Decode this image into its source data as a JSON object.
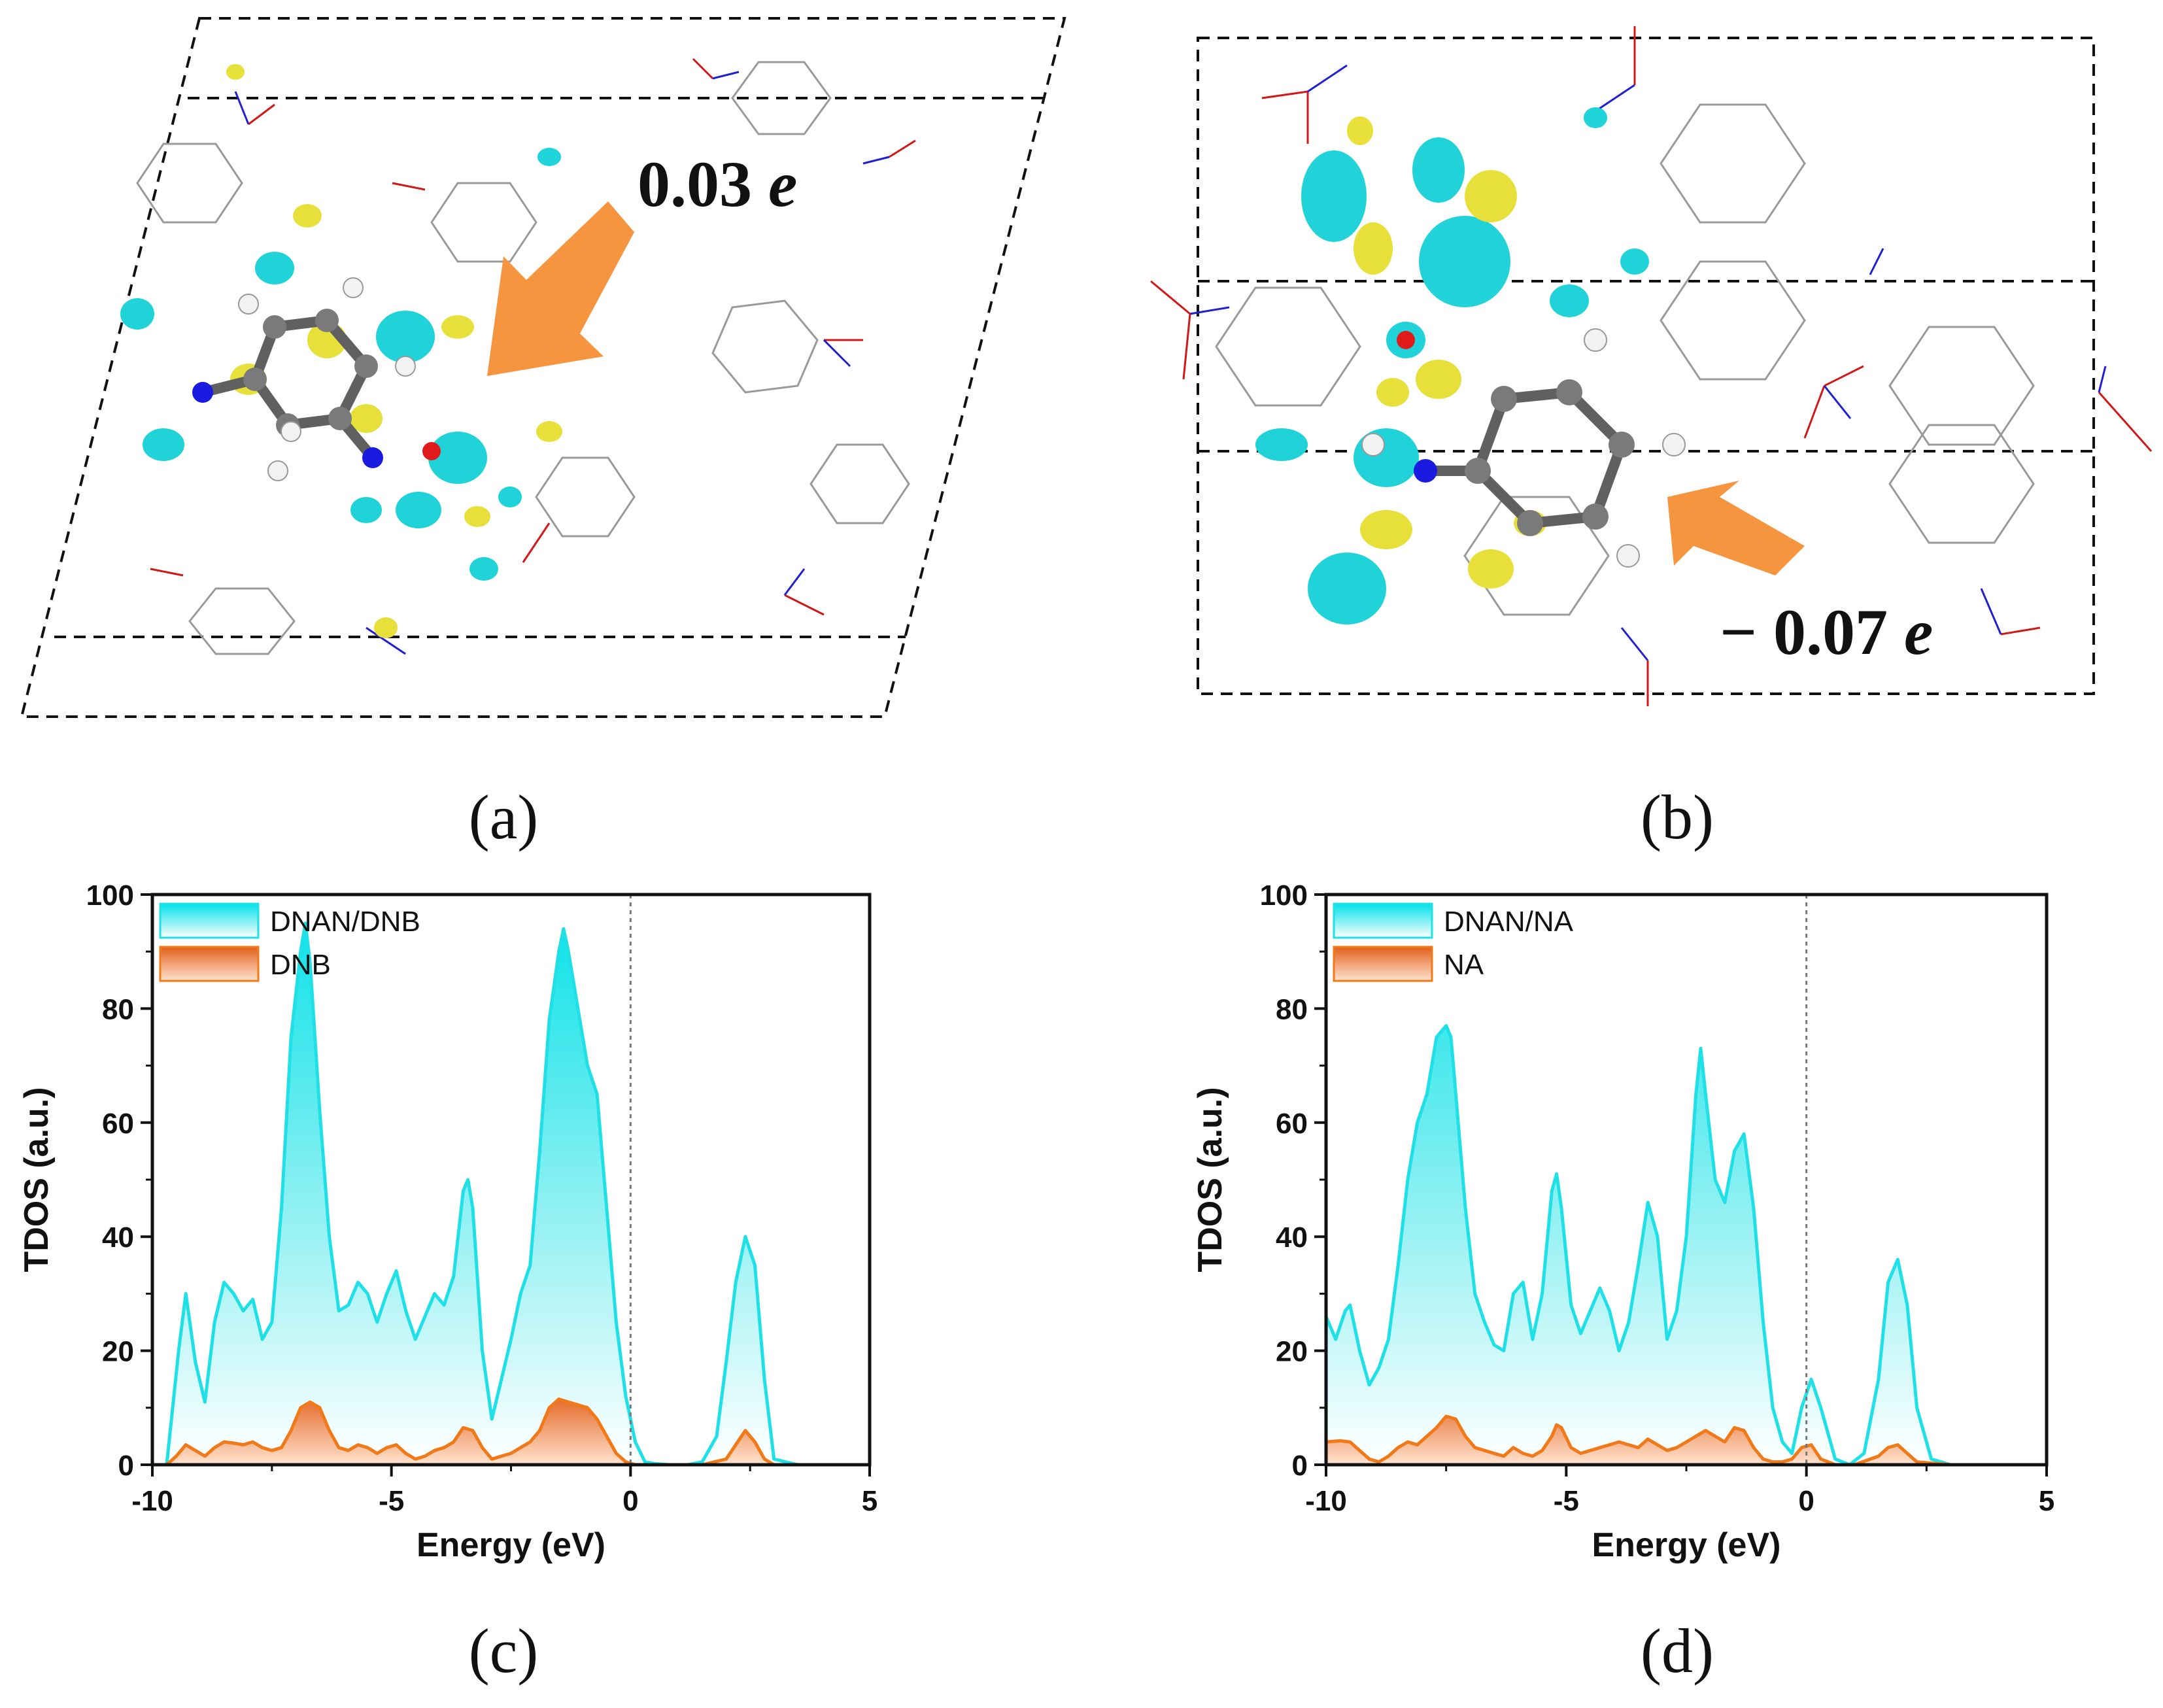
{
  "panels": {
    "a": {
      "label": "(a)",
      "charge": "0.03",
      "unit": "e"
    },
    "b": {
      "label": "(b)",
      "charge": "− 0.07",
      "unit": "e"
    },
    "c": {
      "label": "(c)"
    },
    "d": {
      "label": "(d)"
    }
  },
  "colors": {
    "cyan": "#1fe0e6",
    "orange": "#f07a1a",
    "arrow": "#f5953f",
    "yellow": "#e8e03a",
    "frame": "#111111"
  },
  "chart_data": [
    {
      "type": "area",
      "title": "",
      "xlabel": "Energy (eV)",
      "ylabel": "TDOS (a.u.)",
      "xlim": [
        -10,
        5
      ],
      "ylim": [
        0,
        100
      ],
      "xticks": [
        -10,
        -5,
        0,
        5
      ],
      "yticks": [
        0,
        20,
        40,
        60,
        80,
        100
      ],
      "fermi_level": 0,
      "legend_position": "top-left",
      "series": [
        {
          "name": "DNAN/DNB",
          "color": "#1fe0e6",
          "x": [
            -10,
            -9.7,
            -9.45,
            -9.3,
            -9.1,
            -8.9,
            -8.7,
            -8.5,
            -8.3,
            -8.1,
            -7.9,
            -7.7,
            -7.5,
            -7.3,
            -7.1,
            -6.9,
            -6.8,
            -6.7,
            -6.5,
            -6.3,
            -6.1,
            -5.9,
            -5.7,
            -5.5,
            -5.3,
            -5.1,
            -4.9,
            -4.7,
            -4.5,
            -4.3,
            -4.1,
            -3.9,
            -3.7,
            -3.5,
            -3.4,
            -3.3,
            -3.1,
            -2.9,
            -2.7,
            -2.5,
            -2.3,
            -2.1,
            -1.9,
            -1.7,
            -1.5,
            -1.4,
            -1.3,
            -1.1,
            -0.9,
            -0.7,
            -0.5,
            -0.3,
            -0.1,
            0.1,
            0.3,
            0.5,
            0.8,
            1.2,
            1.5,
            1.8,
            2.0,
            2.2,
            2.4,
            2.6,
            2.8,
            3.0,
            3.5,
            4.0,
            5.0
          ],
          "y": [
            0,
            0,
            20,
            30,
            18,
            11,
            25,
            32,
            30,
            27,
            29,
            22,
            25,
            45,
            75,
            90,
            95,
            88,
            62,
            40,
            27,
            28,
            32,
            30,
            25,
            30,
            34,
            27,
            22,
            26,
            30,
            28,
            33,
            48,
            50,
            45,
            20,
            8,
            15,
            22,
            30,
            35,
            55,
            78,
            90,
            94,
            90,
            80,
            70,
            65,
            45,
            25,
            12,
            4,
            0.5,
            0.2,
            0,
            0,
            0.5,
            5,
            18,
            32,
            40,
            35,
            15,
            1,
            0,
            0,
            0
          ]
        },
        {
          "name": "DNB",
          "color": "#f07a1a",
          "x": [
            -10,
            -9.7,
            -9.5,
            -9.3,
            -9.1,
            -8.9,
            -8.7,
            -8.5,
            -8.3,
            -8.1,
            -7.9,
            -7.7,
            -7.5,
            -7.3,
            -7.1,
            -6.9,
            -6.7,
            -6.5,
            -6.3,
            -6.1,
            -5.9,
            -5.7,
            -5.5,
            -5.3,
            -5.1,
            -4.9,
            -4.7,
            -4.5,
            -4.3,
            -4.1,
            -3.9,
            -3.7,
            -3.5,
            -3.3,
            -3.1,
            -2.9,
            -2.7,
            -2.5,
            -2.3,
            -2.1,
            -1.9,
            -1.7,
            -1.5,
            -1.3,
            -1.1,
            -0.9,
            -0.7,
            -0.5,
            -0.3,
            -0.1,
            0.1,
            0.5,
            1.0,
            1.5,
            2.0,
            2.2,
            2.4,
            2.6,
            2.8,
            3.0,
            4.0,
            5.0
          ],
          "y": [
            0,
            0,
            1.5,
            3.5,
            2.5,
            1.5,
            3,
            4,
            3.8,
            3.5,
            4,
            3,
            2.5,
            3,
            6,
            10,
            11,
            10,
            6,
            3,
            2.5,
            3.5,
            3,
            2,
            3,
            3.5,
            2,
            1,
            1.5,
            2.5,
            3,
            4,
            6.5,
            6,
            3,
            1,
            1.5,
            2,
            3,
            4,
            6,
            10,
            11.5,
            11,
            10.5,
            10,
            8,
            5,
            2,
            0.5,
            0,
            0,
            0,
            0,
            1,
            3.5,
            6,
            4,
            1,
            0,
            0,
            0
          ]
        }
      ]
    },
    {
      "type": "area",
      "title": "",
      "xlabel": "Energy (eV)",
      "ylabel": "TDOS (a.u.)",
      "xlim": [
        -10,
        5
      ],
      "ylim": [
        0,
        100
      ],
      "xticks": [
        -10,
        -5,
        0,
        5
      ],
      "yticks": [
        0,
        20,
        40,
        60,
        80,
        100
      ],
      "fermi_level": 0,
      "legend_position": "top-left",
      "series": [
        {
          "name": "DNAN/NA",
          "color": "#1fe0e6",
          "x": [
            -10,
            -9.8,
            -9.6,
            -9.5,
            -9.3,
            -9.1,
            -8.9,
            -8.7,
            -8.5,
            -8.3,
            -8.1,
            -7.9,
            -7.7,
            -7.5,
            -7.4,
            -7.3,
            -7.1,
            -6.9,
            -6.7,
            -6.5,
            -6.3,
            -6.1,
            -5.9,
            -5.7,
            -5.5,
            -5.3,
            -5.2,
            -5.1,
            -4.9,
            -4.7,
            -4.5,
            -4.3,
            -4.1,
            -3.9,
            -3.7,
            -3.5,
            -3.3,
            -3.1,
            -2.9,
            -2.7,
            -2.5,
            -2.3,
            -2.2,
            -2.1,
            -1.9,
            -1.7,
            -1.5,
            -1.3,
            -1.1,
            -0.9,
            -0.7,
            -0.5,
            -0.3,
            -0.1,
            0.1,
            0.3,
            0.6,
            0.9,
            1.2,
            1.5,
            1.7,
            1.9,
            2.1,
            2.3,
            2.6,
            3.0,
            4.0,
            5.0
          ],
          "y": [
            26,
            22,
            27,
            28,
            20,
            14,
            17,
            22,
            35,
            50,
            60,
            65,
            75,
            77,
            75,
            65,
            45,
            30,
            25,
            21,
            20,
            30,
            32,
            22,
            30,
            48,
            51,
            45,
            28,
            23,
            27,
            31,
            27,
            20,
            25,
            35,
            46,
            40,
            22,
            27,
            40,
            65,
            73,
            65,
            50,
            46,
            55,
            58,
            45,
            25,
            10,
            4,
            2,
            10,
            15,
            10,
            1,
            0,
            2,
            15,
            32,
            36,
            28,
            10,
            1,
            0,
            0,
            0
          ]
        },
        {
          "name": "NA",
          "color": "#f07a1a",
          "x": [
            -10,
            -9.7,
            -9.5,
            -9.3,
            -9.1,
            -8.9,
            -8.7,
            -8.5,
            -8.3,
            -8.1,
            -7.9,
            -7.7,
            -7.5,
            -7.3,
            -7.1,
            -6.9,
            -6.7,
            -6.5,
            -6.3,
            -6.1,
            -5.9,
            -5.7,
            -5.5,
            -5.3,
            -5.2,
            -5.1,
            -4.9,
            -4.7,
            -4.5,
            -4.3,
            -4.1,
            -3.9,
            -3.7,
            -3.5,
            -3.3,
            -3.1,
            -2.9,
            -2.7,
            -2.5,
            -2.3,
            -2.1,
            -1.9,
            -1.7,
            -1.5,
            -1.3,
            -1.1,
            -0.9,
            -0.7,
            -0.5,
            -0.3,
            -0.1,
            0.1,
            0.3,
            0.6,
            1.0,
            1.5,
            1.7,
            1.9,
            2.1,
            2.3,
            3.0,
            4.0,
            5.0
          ],
          "y": [
            4,
            4.2,
            4,
            2.5,
            1,
            0.5,
            1.5,
            3,
            4,
            3.5,
            5,
            6.5,
            8.5,
            8,
            5,
            3,
            2.5,
            2,
            1.5,
            3,
            2,
            1.5,
            2.5,
            5,
            7,
            6.5,
            3,
            2,
            2.5,
            3,
            3.5,
            4,
            3.5,
            3,
            4.5,
            3.5,
            2.5,
            3,
            4,
            5,
            6,
            5,
            4,
            6.5,
            6,
            3,
            1,
            0.5,
            0.5,
            1,
            3,
            3.5,
            1,
            0,
            0,
            1.5,
            3,
            3.5,
            2,
            0.5,
            0,
            0,
            0
          ]
        }
      ]
    }
  ]
}
